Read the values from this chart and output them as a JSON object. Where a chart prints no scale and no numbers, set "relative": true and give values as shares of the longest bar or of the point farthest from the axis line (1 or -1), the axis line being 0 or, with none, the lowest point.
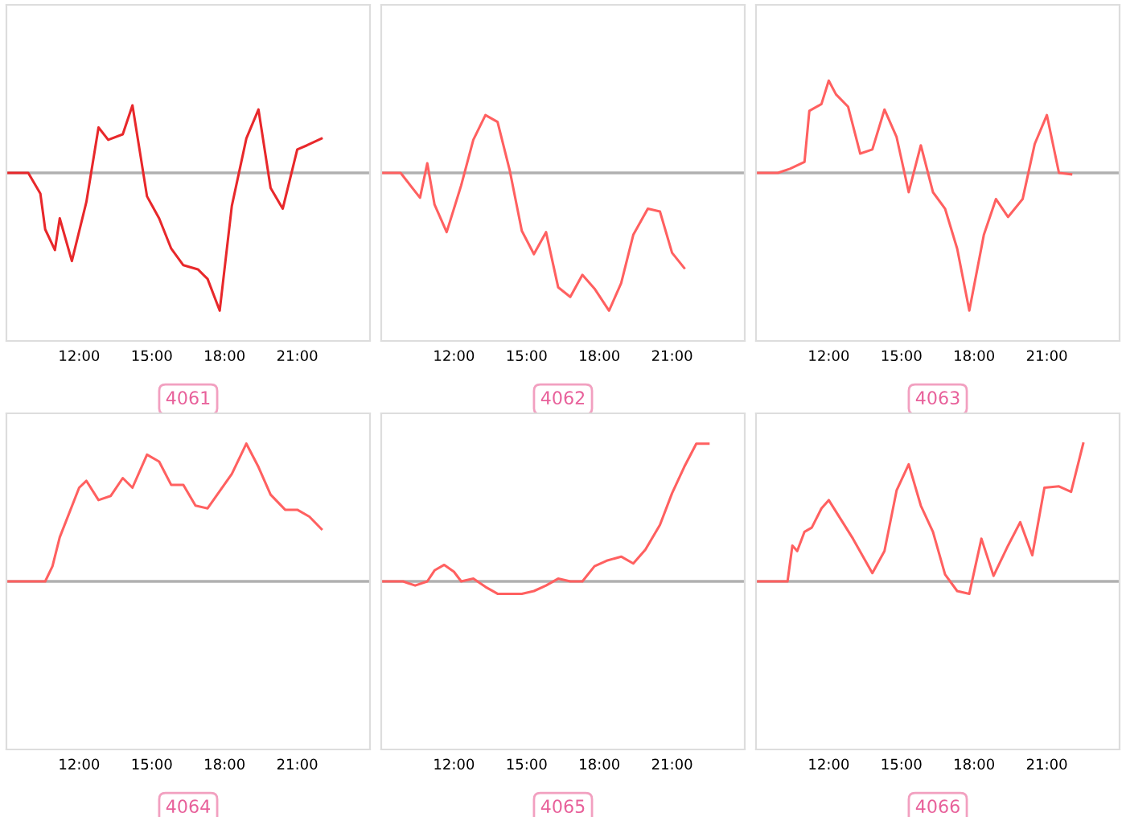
{
  "chart_data": [
    {
      "type": "line",
      "relative": true,
      "xlabel": "4061",
      "tick_labels": "x",
      "xlim": [
        9,
        24
      ],
      "xticks": [
        {
          "value": 12,
          "label": "12:00"
        },
        {
          "value": 15,
          "label": "15:00"
        },
        {
          "value": 18,
          "label": "18:00"
        },
        {
          "value": 21,
          "label": "21:00"
        }
      ],
      "ref_lines": [
        {
          "axis": "y",
          "value": 0,
          "color": "#b0b0b0"
        }
      ],
      "series": [
        {
          "color": "#e8282b",
          "x": [
            9.0,
            9.9,
            10.4,
            10.6,
            11.0,
            11.2,
            11.7,
            12.3,
            12.8,
            13.2,
            13.8,
            14.2,
            14.8,
            15.3,
            15.8,
            16.3,
            16.9,
            17.3,
            17.8,
            18.3,
            18.9,
            19.4,
            19.9,
            20.4,
            21.0,
            21.4,
            22.0
          ],
          "values": [
            0,
            0,
            -0.15,
            -0.41,
            -0.56,
            -0.33,
            -0.64,
            -0.21,
            0.33,
            0.24,
            0.28,
            0.49,
            -0.17,
            -0.33,
            -0.55,
            -0.67,
            -0.7,
            -0.77,
            -1,
            -0.24,
            0.25,
            0.46,
            -0.11,
            -0.26,
            0.17,
            0.2,
            0.25
          ]
        }
      ]
    },
    {
      "type": "line",
      "relative": true,
      "xlabel": "4062",
      "tick_labels": "x",
      "xlim": [
        9,
        24
      ],
      "xticks": [
        {
          "value": 12,
          "label": "12:00"
        },
        {
          "value": 15,
          "label": "15:00"
        },
        {
          "value": 18,
          "label": "18:00"
        },
        {
          "value": 21,
          "label": "21:00"
        }
      ],
      "ref_lines": [
        {
          "axis": "y",
          "value": 0,
          "color": "#b0b0b0"
        }
      ],
      "series": [
        {
          "color": "#ff6060",
          "x": [
            9.0,
            9.8,
            10.6,
            10.9,
            11.2,
            11.7,
            12.3,
            12.8,
            13.3,
            13.8,
            14.3,
            14.8,
            15.3,
            15.8,
            16.3,
            16.8,
            17.3,
            17.8,
            18.4,
            18.9,
            19.4,
            20.0,
            20.5,
            21.0,
            21.5
          ],
          "values": [
            0,
            0,
            -0.18,
            0.07,
            -0.23,
            -0.43,
            -0.09,
            0.24,
            0.42,
            0.37,
            0.02,
            -0.42,
            -0.59,
            -0.43,
            -0.83,
            -0.9,
            -0.74,
            -0.84,
            -1,
            -0.8,
            -0.45,
            -0.26,
            -0.28,
            -0.58,
            -0.69
          ]
        }
      ]
    },
    {
      "type": "line",
      "relative": true,
      "xlabel": "4063",
      "tick_labels": "x",
      "xlim": [
        9,
        24
      ],
      "xticks": [
        {
          "value": 12,
          "label": "12:00"
        },
        {
          "value": 15,
          "label": "15:00"
        },
        {
          "value": 18,
          "label": "18:00"
        },
        {
          "value": 21,
          "label": "21:00"
        }
      ],
      "ref_lines": [
        {
          "axis": "y",
          "value": 0,
          "color": "#b0b0b0"
        }
      ],
      "series": [
        {
          "color": "#ff6060",
          "x": [
            9.0,
            9.9,
            10.4,
            11.0,
            11.2,
            11.7,
            12.0,
            12.3,
            12.8,
            13.3,
            13.8,
            14.3,
            14.8,
            15.3,
            15.8,
            16.3,
            16.8,
            17.3,
            17.8,
            18.4,
            18.9,
            19.4,
            20.0,
            20.5,
            21.0,
            21.5,
            22.0
          ],
          "values": [
            0,
            0,
            0.03,
            0.08,
            0.45,
            0.5,
            0.67,
            0.57,
            0.48,
            0.14,
            0.17,
            0.46,
            0.26,
            -0.14,
            0.2,
            -0.14,
            -0.26,
            -0.55,
            -1,
            -0.45,
            -0.19,
            -0.32,
            -0.19,
            0.21,
            0.42,
            0,
            -0.01
          ]
        }
      ]
    },
    {
      "type": "line",
      "relative": true,
      "xlabel": "4064",
      "tick_labels": "x",
      "xlim": [
        9,
        24
      ],
      "xticks": [
        {
          "value": 12,
          "label": "12:00"
        },
        {
          "value": 15,
          "label": "15:00"
        },
        {
          "value": 18,
          "label": "18:00"
        },
        {
          "value": 21,
          "label": "21:00"
        }
      ],
      "ref_lines": [
        {
          "axis": "y",
          "value": 0,
          "color": "#b0b0b0"
        }
      ],
      "series": [
        {
          "color": "#ff6060",
          "x": [
            9.0,
            10.6,
            10.9,
            11.2,
            12.0,
            12.3,
            12.8,
            13.3,
            13.8,
            14.2,
            14.8,
            15.3,
            15.8,
            16.3,
            16.8,
            17.3,
            18.3,
            18.9,
            19.4,
            19.9,
            20.5,
            21.0,
            21.5,
            22.0
          ],
          "values": [
            0,
            0,
            0.11,
            0.32,
            0.68,
            0.73,
            0.59,
            0.62,
            0.75,
            0.68,
            0.92,
            0.87,
            0.7,
            0.7,
            0.55,
            0.53,
            0.78,
            1,
            0.83,
            0.63,
            0.52,
            0.52,
            0.47,
            0.38
          ]
        }
      ]
    },
    {
      "type": "line",
      "relative": true,
      "xlabel": "4065",
      "tick_labels": "x",
      "xlim": [
        9,
        24
      ],
      "xticks": [
        {
          "value": 12,
          "label": "12:00"
        },
        {
          "value": 15,
          "label": "15:00"
        },
        {
          "value": 18,
          "label": "18:00"
        },
        {
          "value": 21,
          "label": "21:00"
        }
      ],
      "ref_lines": [
        {
          "axis": "y",
          "value": 0,
          "color": "#b0b0b0"
        }
      ],
      "series": [
        {
          "color": "#ff6060",
          "x": [
            9.0,
            9.9,
            10.4,
            10.9,
            11.2,
            11.6,
            12.0,
            12.3,
            12.8,
            13.3,
            13.8,
            14.8,
            15.3,
            15.8,
            16.3,
            16.8,
            17.3,
            17.8,
            18.3,
            18.9,
            19.4,
            19.9,
            20.5,
            21.0,
            21.5,
            22.0,
            22.5
          ],
          "values": [
            0,
            0,
            -0.03,
            0,
            0.08,
            0.12,
            0.07,
            0,
            0.02,
            -0.04,
            -0.09,
            -0.09,
            -0.07,
            -0.03,
            0.02,
            0,
            0,
            0.11,
            0.15,
            0.18,
            0.13,
            0.23,
            0.41,
            0.64,
            0.83,
            1,
            1
          ]
        }
      ]
    },
    {
      "type": "line",
      "relative": true,
      "xlabel": "4066",
      "tick_labels": "x",
      "xlim": [
        9,
        24
      ],
      "xticks": [
        {
          "value": 12,
          "label": "12:00"
        },
        {
          "value": 15,
          "label": "15:00"
        },
        {
          "value": 18,
          "label": "18:00"
        },
        {
          "value": 21,
          "label": "21:00"
        }
      ],
      "ref_lines": [
        {
          "axis": "y",
          "value": 0,
          "color": "#b0b0b0"
        }
      ],
      "series": [
        {
          "color": "#ff6060",
          "x": [
            9.0,
            10.3,
            10.5,
            10.7,
            11.0,
            11.3,
            11.7,
            12.0,
            12.5,
            13.0,
            13.8,
            14.3,
            14.8,
            15.3,
            15.8,
            16.3,
            16.8,
            17.3,
            17.8,
            18.3,
            18.8,
            19.4,
            19.9,
            20.4,
            20.9,
            21.5,
            22.0,
            22.5
          ],
          "values": [
            0,
            0,
            0.26,
            0.22,
            0.36,
            0.39,
            0.53,
            0.59,
            0.45,
            0.31,
            0.06,
            0.22,
            0.66,
            0.85,
            0.55,
            0.36,
            0.05,
            -0.07,
            -0.09,
            0.31,
            0.04,
            0.26,
            0.43,
            0.19,
            0.68,
            0.69,
            0.65,
            1
          ]
        }
      ]
    }
  ]
}
